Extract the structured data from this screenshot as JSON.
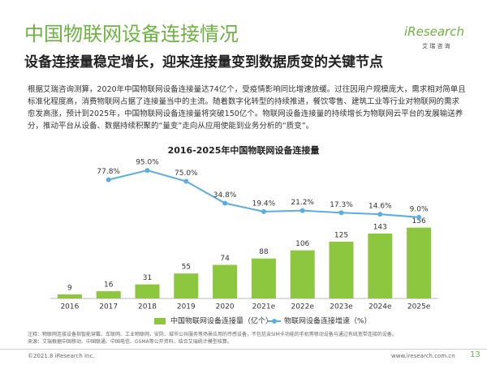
{
  "header": {
    "title": "中国物联网设备连接情况",
    "subtitle": "设备连接量稳定增长，迎来连接量变到数据质变的关键节点",
    "logo": "iResearch",
    "logo_sub": "艾 瑞 咨 询"
  },
  "paragraph": "根据艾瑞咨询测算，2020年中国物联网设备连接量达74亿个，受疫情影响同比增速放缓。过往因用户规模庞大，需求相对简单且标准化程度高，消费物联网占据了连接量当中的主流。随着数字化转型的持续推进，餐饮零售、建筑工业等行业对物联网的需求愈发高涨，预计到2025年，中国物联网设备连接量将突破150亿个。物联网设备连接量的持续增长为物联网云平台的发展输送养分，推动平台从设备、数据持续积聚的“量变”走向从应用使能到业务分析的“质变”。",
  "chart_data": {
    "type": "bar",
    "title": "2016-2025年中国物联网设备连接量",
    "categories": [
      "2016",
      "2017",
      "2018",
      "2019",
      "2020",
      "2021e",
      "2022e",
      "2023e",
      "2024e",
      "2025e"
    ],
    "series": [
      {
        "name": "中国物联网设备连接量（亿个）",
        "color": "#8dc63f",
        "type": "bar",
        "values": [
          9,
          16,
          31,
          55,
          74,
          88,
          106,
          125,
          143,
          156
        ]
      },
      {
        "name": "物联网设备连接增速（%）",
        "color": "#5aaee0",
        "type": "line",
        "axis": "y2",
        "values": [
          null,
          77.8,
          95.0,
          75.0,
          34.8,
          19.4,
          21.2,
          17.3,
          14.6,
          9.0
        ],
        "value_labels": [
          null,
          "77.8%",
          "95.0%",
          "75.0%",
          "34.8%",
          "19.4%",
          "21.2%",
          "17.3%",
          "14.6%",
          "9.0%"
        ]
      }
    ],
    "ylim": [
      0,
      300
    ],
    "y2lim": [
      -140,
      110
    ],
    "legend": "bottom"
  },
  "notes": [
    "注释：物联网连接设备指智能穿戴、车联网、工业物联网、安防、城市公共服务等场景应用的传感设备，不包括含SIM卡功能的手机等移动设备与通过有线宽带连接的设备。",
    "来源：艾瑞根据中国移动、中国联通、中国电信、GSMA等公开资料，结合艾瑞统计模型核算。"
  ],
  "footer": {
    "copyright": "©2021.8 iResearch Inc.",
    "url": "www.iresearch.com.cn",
    "page": "13"
  }
}
